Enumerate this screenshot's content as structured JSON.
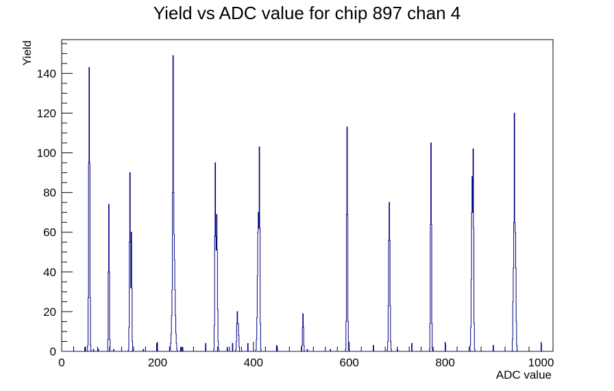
{
  "chart_data": {
    "type": "histogram",
    "title": "Yield vs ADC value for chip 897 chan 4",
    "xlabel": "ADC value",
    "ylabel": "Yield",
    "xlim": [
      0,
      1025
    ],
    "ylim": [
      0,
      157
    ],
    "x_ticks": [
      0,
      200,
      400,
      600,
      800,
      1000
    ],
    "y_ticks": [
      0,
      20,
      40,
      60,
      80,
      100,
      120,
      140
    ],
    "x_minor_step": 25,
    "y_minor_step": 5,
    "line_color": "#000080",
    "grid": false,
    "peaks": [
      {
        "center": 57,
        "height": 143,
        "width": 1.1
      },
      {
        "center": 98,
        "height": 74,
        "width": 0.9
      },
      {
        "center": 142,
        "height": 90,
        "width": 1.0
      },
      {
        "center": 145,
        "height": 60,
        "width": 0.9
      },
      {
        "center": 232,
        "height": 149,
        "width": 0.9
      },
      {
        "center": 233,
        "height": 64,
        "width": 2.5
      },
      {
        "center": 320,
        "height": 95,
        "width": 1.0
      },
      {
        "center": 323,
        "height": 69,
        "width": 1.3
      },
      {
        "center": 366,
        "height": 20,
        "width": 1.2
      },
      {
        "center": 368,
        "height": 14,
        "width": 1.0
      },
      {
        "center": 412,
        "height": 103,
        "width": 1.0
      },
      {
        "center": 410,
        "height": 70,
        "width": 1.8
      },
      {
        "center": 503,
        "height": 19,
        "width": 1.0
      },
      {
        "center": 595,
        "height": 113,
        "width": 1.0
      },
      {
        "center": 683,
        "height": 75,
        "width": 1.3
      },
      {
        "center": 770,
        "height": 105,
        "width": 1.0
      },
      {
        "center": 858,
        "height": 102,
        "width": 1.0
      },
      {
        "center": 856,
        "height": 88,
        "width": 1.5
      },
      {
        "center": 944,
        "height": 120,
        "width": 0.9
      },
      {
        "center": 946,
        "height": 60,
        "width": 1.2
      },
      {
        "center": 942,
        "height": 42,
        "width": 1.0
      }
    ],
    "isolated_counts": [
      {
        "x": 48,
        "y": 2
      },
      {
        "x": 66,
        "y": 1
      },
      {
        "x": 76,
        "y": 1
      },
      {
        "x": 108,
        "y": 1
      },
      {
        "x": 170,
        "y": 1
      },
      {
        "x": 198,
        "y": 4
      },
      {
        "x": 248,
        "y": 2
      },
      {
        "x": 252,
        "y": 2
      },
      {
        "x": 300,
        "y": 4
      },
      {
        "x": 345,
        "y": 2
      },
      {
        "x": 356,
        "y": 4
      },
      {
        "x": 388,
        "y": 4
      },
      {
        "x": 448,
        "y": 3
      },
      {
        "x": 512,
        "y": 1
      },
      {
        "x": 560,
        "y": 1
      },
      {
        "x": 650,
        "y": 3
      },
      {
        "x": 700,
        "y": 1
      },
      {
        "x": 730,
        "y": 4
      },
      {
        "x": 800,
        "y": 4
      },
      {
        "x": 900,
        "y": 3
      },
      {
        "x": 1000,
        "y": 4
      }
    ]
  }
}
